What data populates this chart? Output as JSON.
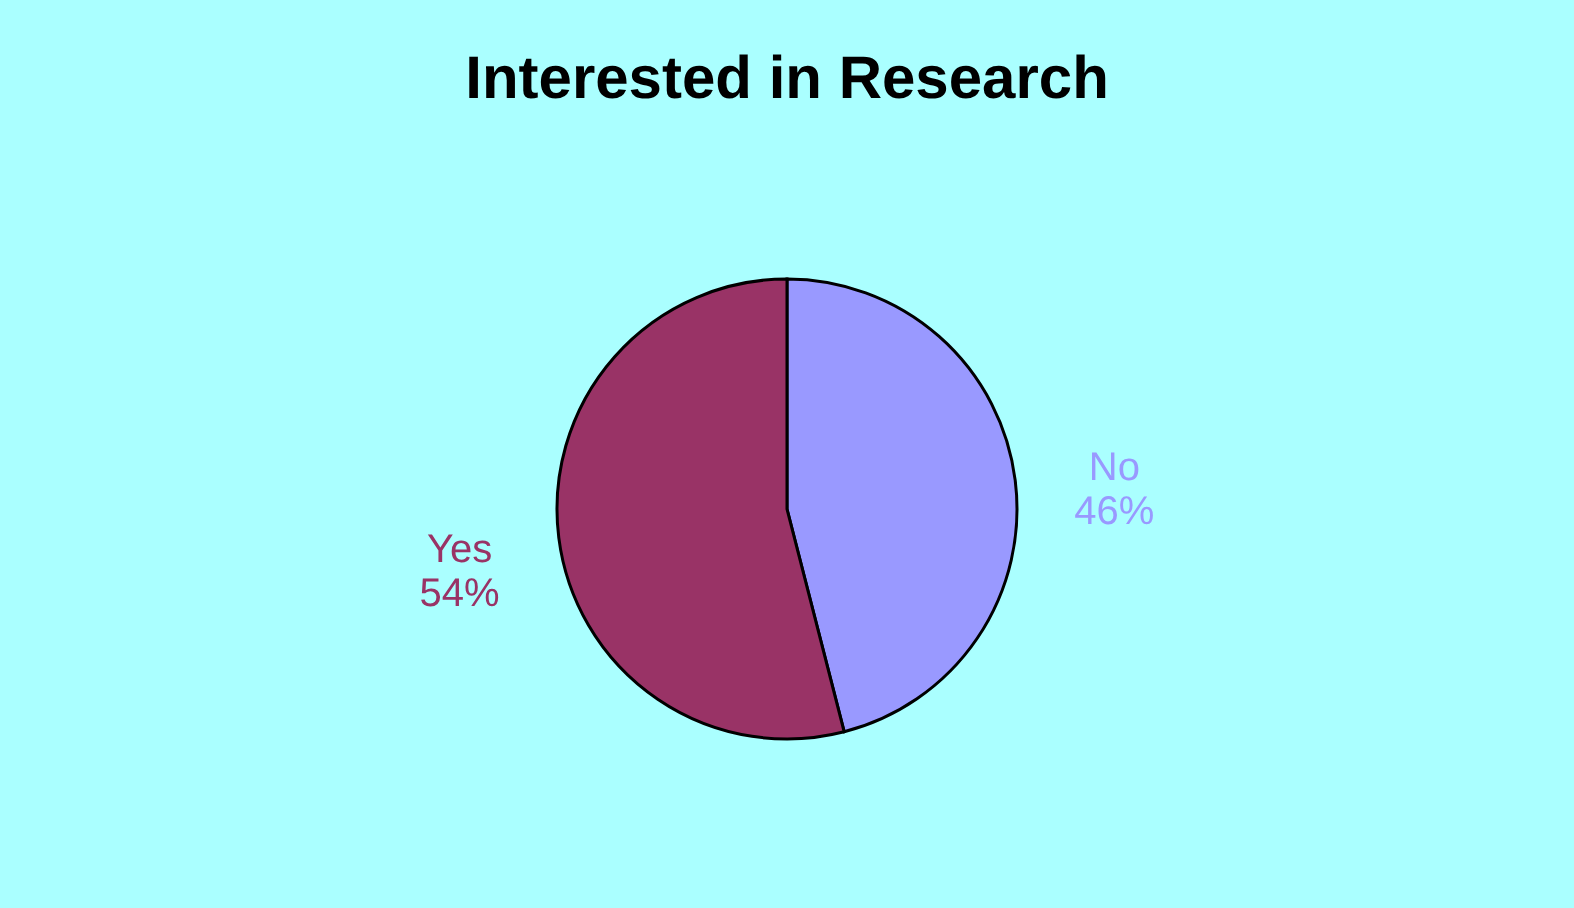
{
  "chart_data": {
    "type": "pie",
    "title": "Interested in Research",
    "categories": [
      "No",
      "Yes"
    ],
    "values": [
      46,
      54
    ],
    "value_labels": [
      "46%",
      "54%"
    ],
    "colors": [
      "#9999ff",
      "#993366"
    ],
    "legend": false
  }
}
